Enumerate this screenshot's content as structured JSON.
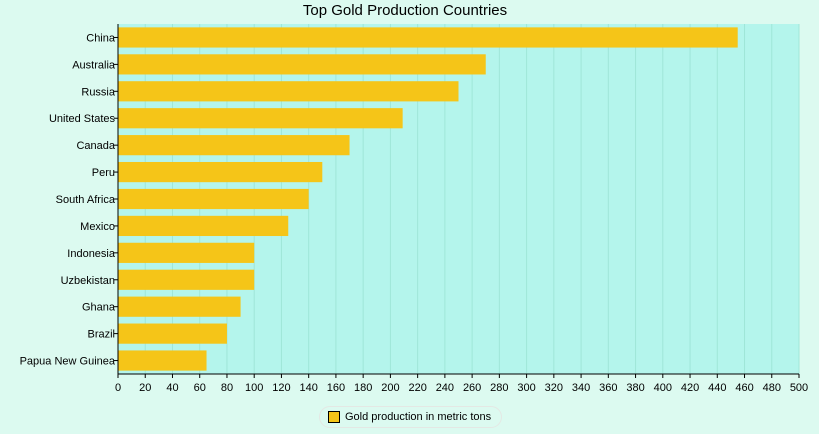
{
  "chart_data": {
    "type": "bar",
    "orientation": "horizontal",
    "title": "Top Gold Production Countries",
    "xlabel": "",
    "ylabel": "",
    "categories": [
      "China",
      "Australia",
      "Russia",
      "United States",
      "Canada",
      "Peru",
      "South Africa",
      "Mexico",
      "Indonesia",
      "Uzbekistan",
      "Ghana",
      "Brazil",
      "Papua New Guinea"
    ],
    "series": [
      {
        "name": "Gold production in metric tons",
        "values": [
          455,
          270,
          250,
          209,
          170,
          150,
          140,
          125,
          100,
          100,
          90,
          80,
          65
        ],
        "color": "#f5c518"
      }
    ],
    "xlim": [
      0,
      500
    ],
    "x_ticks": [
      0,
      20,
      40,
      60,
      80,
      100,
      120,
      140,
      160,
      180,
      200,
      220,
      240,
      260,
      280,
      300,
      320,
      340,
      360,
      380,
      400,
      420,
      440,
      460,
      480,
      500
    ],
    "grid": true,
    "legend_position": "bottom-center",
    "plot_background": "#b4f5ec",
    "page_background": "#dcfaf0"
  }
}
